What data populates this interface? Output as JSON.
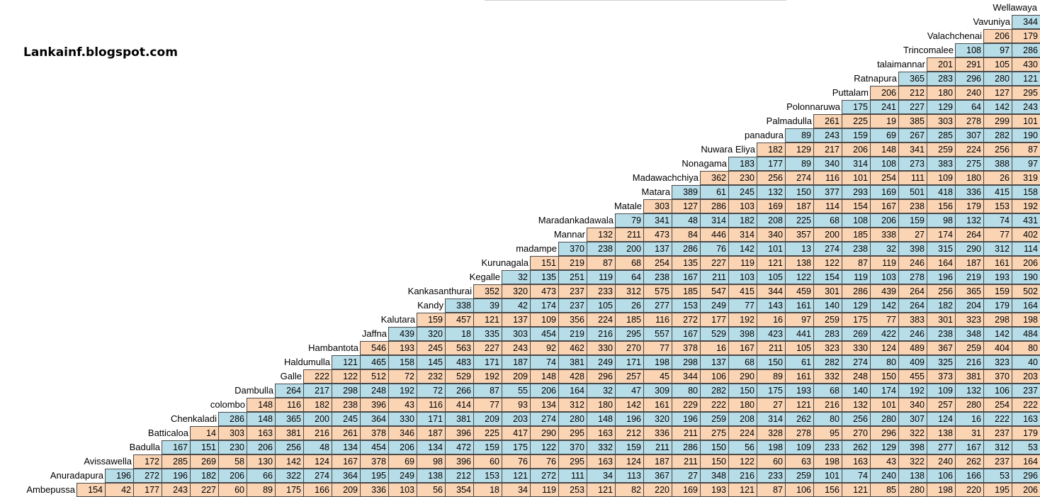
{
  "watermark": "Lankainf.blogspot.com",
  "colors": {
    "blue": "#b7dde8",
    "peach": "#fbd4b4"
  },
  "towns": [
    "Ambepussa",
    "Anuradapura",
    "Avissawella",
    "Badulla",
    "Batticaloa",
    "Chenkaladi",
    "colombo",
    "Dambulla",
    "Galle",
    "Haldumulla",
    "Hambantota",
    "Jaffna",
    "Kalutara",
    "Kandy",
    "Kankasanthurai",
    "Kegalle",
    "Kurunagala",
    "madampe",
    "Mannar",
    "Maradankadawala",
    "Matale",
    "Matara",
    "Madawachchiya",
    "Nonagama",
    "Nuwara Eliya",
    "panadura",
    "Palmadulla",
    "Polonnaruwa",
    "Puttalam",
    "Ratnapura",
    "talaimannar",
    "Trincomalee",
    "Valachchenai",
    "Vavuniya",
    "Wellawaya"
  ],
  "distances": [
    [
      154,
      42,
      177,
      243,
      227,
      60,
      89,
      175,
      166,
      209,
      336,
      103,
      56,
      354,
      18,
      34,
      119,
      253,
      121,
      82,
      220,
      169,
      193,
      121,
      87,
      106,
      156,
      121,
      85,
      280,
      198,
      220,
      195,
      206
    ],
    [
      196,
      272,
      196,
      182,
      206,
      66,
      322,
      274,
      364,
      195,
      249,
      138,
      212,
      153,
      121,
      272,
      111,
      34,
      113,
      367,
      27,
      348,
      216,
      233,
      259,
      101,
      74,
      240,
      138,
      106,
      166,
      53,
      296
    ],
    [
      172,
      285,
      269,
      58,
      130,
      142,
      124,
      167,
      378,
      69,
      98,
      396,
      60,
      76,
      76,
      295,
      163,
      124,
      187,
      211,
      150,
      122,
      60,
      63,
      198,
      163,
      43,
      322,
      240,
      262,
      237,
      164
    ],
    [
      167,
      151,
      230,
      206,
      256,
      48,
      134,
      454,
      206,
      134,
      472,
      159,
      175,
      122,
      370,
      332,
      159,
      211,
      286,
      150,
      56,
      198,
      109,
      233,
      262,
      129,
      398,
      277,
      167,
      312,
      53
    ],
    [
      14,
      303,
      163,
      381,
      216,
      261,
      378,
      346,
      187,
      396,
      225,
      417,
      290,
      295,
      163,
      212,
      336,
      211,
      275,
      224,
      328,
      278,
      95,
      270,
      296,
      322,
      138,
      31,
      237,
      179
    ],
    [
      286,
      148,
      365,
      200,
      245,
      364,
      330,
      171,
      381,
      209,
      203,
      274,
      280,
      148,
      196,
      320,
      196,
      259,
      208,
      314,
      262,
      80,
      256,
      280,
      307,
      124,
      16,
      222,
      163
    ],
    [
      148,
      116,
      182,
      238,
      396,
      43,
      116,
      414,
      77,
      93,
      134,
      312,
      180,
      142,
      161,
      229,
      222,
      180,
      27,
      121,
      216,
      132,
      101,
      340,
      257,
      280,
      254,
      222
    ],
    [
      264,
      217,
      298,
      248,
      192,
      72,
      266,
      87,
      55,
      206,
      164,
      32,
      47,
      309,
      80,
      282,
      150,
      175,
      193,
      68,
      140,
      174,
      192,
      109,
      132,
      106,
      237
    ],
    [
      222,
      122,
      512,
      72,
      232,
      529,
      192,
      209,
      148,
      428,
      296,
      257,
      45,
      344,
      106,
      290,
      89,
      161,
      332,
      248,
      150,
      455,
      373,
      381,
      370,
      203
    ],
    [
      121,
      465,
      158,
      145,
      483,
      171,
      187,
      74,
      381,
      249,
      171,
      198,
      298,
      137,
      68,
      150,
      61,
      282,
      274,
      80,
      409,
      325,
      216,
      323,
      40
    ],
    [
      546,
      193,
      245,
      563,
      227,
      243,
      92,
      462,
      330,
      270,
      77,
      378,
      16,
      167,
      211,
      105,
      323,
      330,
      124,
      489,
      367,
      259,
      404,
      80
    ],
    [
      439,
      320,
      18,
      335,
      303,
      454,
      219,
      216,
      295,
      557,
      167,
      529,
      398,
      423,
      441,
      283,
      269,
      422,
      246,
      238,
      348,
      142,
      484
    ],
    [
      159,
      457,
      121,
      137,
      109,
      356,
      224,
      185,
      116,
      272,
      177,
      192,
      16,
      97,
      259,
      175,
      77,
      383,
      301,
      323,
      298,
      198
    ],
    [
      338,
      39,
      42,
      174,
      237,
      105,
      26,
      277,
      153,
      249,
      77,
      143,
      161,
      140,
      129,
      142,
      264,
      182,
      204,
      179,
      164
    ],
    [
      352,
      320,
      473,
      237,
      233,
      312,
      575,
      185,
      547,
      415,
      344,
      459,
      301,
      286,
      439,
      264,
      256,
      365,
      159,
      502
    ],
    [
      32,
      135,
      251,
      119,
      64,
      238,
      167,
      211,
      103,
      105,
      122,
      154,
      119,
      103,
      278,
      196,
      219,
      193,
      190
    ],
    [
      151,
      219,
      87,
      68,
      254,
      135,
      227,
      119,
      121,
      138,
      122,
      87,
      119,
      246,
      164,
      187,
      161,
      206
    ],
    [
      370,
      238,
      200,
      137,
      286,
      76,
      142,
      101,
      13,
      274,
      238,
      32,
      398,
      315,
      290,
      312,
      114
    ],
    [
      132,
      211,
      473,
      84,
      446,
      314,
      340,
      357,
      200,
      185,
      338,
      27,
      174,
      264,
      77,
      402
    ],
    [
      79,
      341,
      48,
      314,
      182,
      208,
      225,
      68,
      108,
      206,
      159,
      98,
      132,
      74,
      431
    ],
    [
      303,
      127,
      286,
      103,
      169,
      187,
      114,
      154,
      167,
      238,
      156,
      179,
      153,
      192
    ],
    [
      389,
      61,
      245,
      132,
      150,
      377,
      293,
      169,
      501,
      418,
      336,
      415,
      158
    ],
    [
      362,
      230,
      256,
      274,
      116,
      101,
      254,
      111,
      109,
      180,
      26,
      319
    ],
    [
      183,
      177,
      89,
      340,
      314,
      108,
      273,
      383,
      275,
      388,
      97
    ],
    [
      182,
      129,
      217,
      206,
      148,
      341,
      259,
      224,
      256,
      87
    ],
    [
      89,
      243,
      159,
      69,
      267,
      285,
      307,
      282,
      190
    ],
    [
      261,
      225,
      19,
      385,
      303,
      278,
      299,
      101
    ],
    [
      175,
      241,
      227,
      129,
      64,
      142,
      243
    ],
    [
      206,
      212,
      180,
      240,
      127,
      295
    ],
    [
      365,
      283,
      296,
      280,
      121
    ],
    [
      201,
      291,
      105,
      430
    ],
    [
      108,
      97,
      286
    ],
    [
      206,
      179
    ],
    [
      344
    ]
  ]
}
